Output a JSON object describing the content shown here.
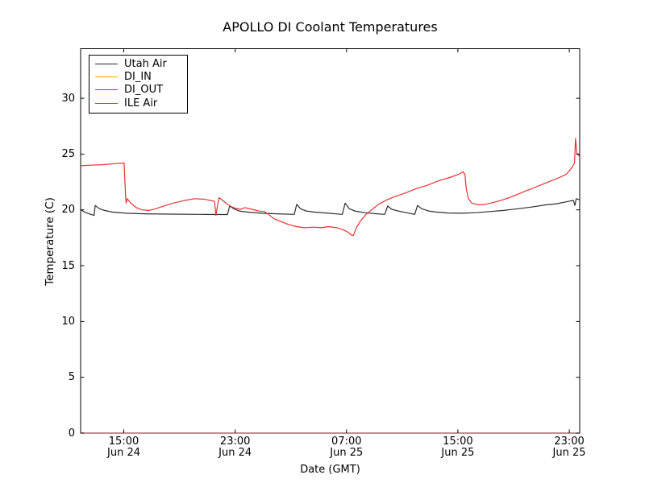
{
  "chart_data": {
    "type": "line",
    "title": "APOLLO DI Coolant Temperatures",
    "xlabel": "Date (GMT)",
    "ylabel": "Temperature (C)",
    "grid": false,
    "legend_position": "upper left",
    "x_unit": "hours since Jun 24 00:00 GMT",
    "xlim": [
      11.9,
      47.75
    ],
    "ylim": [
      0,
      34.44
    ],
    "x_ticks": [
      {
        "hours": 15,
        "line1": "15:00",
        "line2": "Jun 24"
      },
      {
        "hours": 23,
        "line1": "23:00",
        "line2": "Jun 24"
      },
      {
        "hours": 31,
        "line1": "07:00",
        "line2": "Jun 25"
      },
      {
        "hours": 39,
        "line1": "15:00",
        "line2": "Jun 25"
      },
      {
        "hours": 47,
        "line1": "23:00",
        "line2": "Jun 25"
      }
    ],
    "y_ticks": [
      {
        "value": 0,
        "label": "0"
      },
      {
        "value": 5,
        "label": "5"
      },
      {
        "value": 10,
        "label": "10"
      },
      {
        "value": 15,
        "label": "15"
      },
      {
        "value": 20,
        "label": "20"
      },
      {
        "value": 25,
        "label": "25"
      },
      {
        "value": 30,
        "label": "30"
      }
    ],
    "series": [
      {
        "name": "Utah Air",
        "color": "#2e2e2e",
        "opacity": 1,
        "points": [
          [
            11.9,
            20.05
          ],
          [
            12.1,
            19.85
          ],
          [
            12.5,
            19.65
          ],
          [
            12.87,
            19.5
          ],
          [
            12.95,
            20.4
          ],
          [
            13.25,
            20.1
          ],
          [
            13.6,
            19.95
          ],
          [
            14.2,
            19.8
          ],
          [
            15.2,
            19.7
          ],
          [
            16.5,
            19.65
          ],
          [
            18.5,
            19.62
          ],
          [
            20.5,
            19.6
          ],
          [
            22.2,
            19.58
          ],
          [
            22.45,
            19.58
          ],
          [
            22.6,
            20.35
          ],
          [
            22.9,
            20.1
          ],
          [
            23.3,
            19.9
          ],
          [
            23.9,
            19.8
          ],
          [
            24.9,
            19.7
          ],
          [
            26.0,
            19.65
          ],
          [
            27.25,
            19.6
          ],
          [
            27.42,
            20.5
          ],
          [
            27.7,
            20.1
          ],
          [
            28.1,
            19.9
          ],
          [
            28.7,
            19.8
          ],
          [
            29.7,
            19.7
          ],
          [
            30.7,
            19.6
          ],
          [
            30.9,
            20.6
          ],
          [
            31.2,
            20.1
          ],
          [
            31.6,
            19.9
          ],
          [
            32.3,
            19.75
          ],
          [
            33.2,
            19.65
          ],
          [
            33.75,
            19.6
          ],
          [
            33.95,
            20.35
          ],
          [
            34.25,
            20.05
          ],
          [
            34.7,
            19.9
          ],
          [
            35.3,
            19.75
          ],
          [
            35.9,
            19.6
          ],
          [
            36.1,
            20.4
          ],
          [
            36.4,
            20.1
          ],
          [
            36.9,
            19.9
          ],
          [
            37.5,
            19.8
          ],
          [
            38.3,
            19.72
          ],
          [
            39.3,
            19.7
          ],
          [
            40.3,
            19.75
          ],
          [
            41.3,
            19.85
          ],
          [
            42.3,
            19.95
          ],
          [
            43.3,
            20.1
          ],
          [
            44.3,
            20.25
          ],
          [
            45.3,
            20.45
          ],
          [
            46.1,
            20.55
          ],
          [
            46.9,
            20.75
          ],
          [
            47.3,
            20.85
          ],
          [
            47.4,
            20.4
          ],
          [
            47.5,
            21.0
          ],
          [
            47.75,
            20.9
          ]
        ]
      },
      {
        "name": "DI_IN",
        "color": "#ffa500",
        "opacity": 0.6,
        "points": [
          [
            11.9,
            0
          ],
          [
            47.75,
            0
          ]
        ]
      },
      {
        "name": "DI_OUT",
        "color": "#993399",
        "opacity": 0.6,
        "points": [
          [
            11.9,
            0
          ],
          [
            47.75,
            0
          ]
        ]
      },
      {
        "name": "ILE Air",
        "color": "#e23333",
        "opacity": 1,
        "points": [
          [
            11.9,
            23.95
          ],
          [
            12.6,
            24.0
          ],
          [
            13.5,
            24.05
          ],
          [
            14.4,
            24.15
          ],
          [
            15.02,
            24.2
          ],
          [
            15.08,
            22.6
          ],
          [
            15.13,
            21.2
          ],
          [
            15.17,
            20.6
          ],
          [
            15.25,
            21.0
          ],
          [
            15.5,
            20.6
          ],
          [
            15.9,
            20.2
          ],
          [
            16.3,
            20.0
          ],
          [
            16.8,
            19.95
          ],
          [
            17.3,
            20.1
          ],
          [
            18.0,
            20.4
          ],
          [
            18.7,
            20.65
          ],
          [
            19.4,
            20.85
          ],
          [
            20.1,
            21.0
          ],
          [
            20.8,
            20.95
          ],
          [
            21.4,
            20.8
          ],
          [
            21.52,
            20.75
          ],
          [
            21.62,
            19.5
          ],
          [
            21.72,
            20.3
          ],
          [
            21.85,
            21.1
          ],
          [
            22.1,
            20.85
          ],
          [
            22.4,
            20.55
          ],
          [
            22.7,
            20.3
          ],
          [
            23.0,
            20.15
          ],
          [
            23.4,
            20.05
          ],
          [
            23.7,
            20.2
          ],
          [
            24.2,
            20.05
          ],
          [
            24.7,
            19.9
          ],
          [
            25.1,
            19.85
          ],
          [
            25.4,
            19.6
          ],
          [
            25.8,
            19.2
          ],
          [
            26.2,
            19.0
          ],
          [
            26.8,
            18.7
          ],
          [
            27.4,
            18.5
          ],
          [
            28.0,
            18.4
          ],
          [
            28.6,
            18.45
          ],
          [
            29.2,
            18.4
          ],
          [
            29.7,
            18.5
          ],
          [
            30.3,
            18.4
          ],
          [
            30.8,
            18.2
          ],
          [
            31.1,
            18.0
          ],
          [
            31.35,
            17.75
          ],
          [
            31.5,
            17.7
          ],
          [
            31.7,
            18.4
          ],
          [
            32.0,
            19.0
          ],
          [
            32.4,
            19.6
          ],
          [
            32.8,
            20.0
          ],
          [
            33.3,
            20.5
          ],
          [
            33.9,
            20.9
          ],
          [
            34.5,
            21.2
          ],
          [
            35.2,
            21.5
          ],
          [
            36.0,
            21.9
          ],
          [
            36.8,
            22.2
          ],
          [
            37.6,
            22.6
          ],
          [
            38.4,
            22.9
          ],
          [
            39.1,
            23.2
          ],
          [
            39.35,
            23.4
          ],
          [
            39.5,
            23.2
          ],
          [
            39.6,
            21.9
          ],
          [
            39.75,
            21.0
          ],
          [
            40.0,
            20.6
          ],
          [
            40.5,
            20.45
          ],
          [
            41.0,
            20.5
          ],
          [
            41.5,
            20.65
          ],
          [
            42.1,
            20.85
          ],
          [
            42.7,
            21.1
          ],
          [
            43.3,
            21.4
          ],
          [
            43.9,
            21.7
          ],
          [
            44.5,
            22.0
          ],
          [
            45.1,
            22.3
          ],
          [
            45.7,
            22.6
          ],
          [
            46.3,
            22.9
          ],
          [
            46.8,
            23.2
          ],
          [
            47.2,
            23.8
          ],
          [
            47.38,
            24.2
          ],
          [
            47.45,
            26.4
          ],
          [
            47.55,
            25.1
          ],
          [
            47.75,
            24.75
          ]
        ]
      }
    ],
    "axis_color": "#000000",
    "background_color": "#ffffff"
  }
}
